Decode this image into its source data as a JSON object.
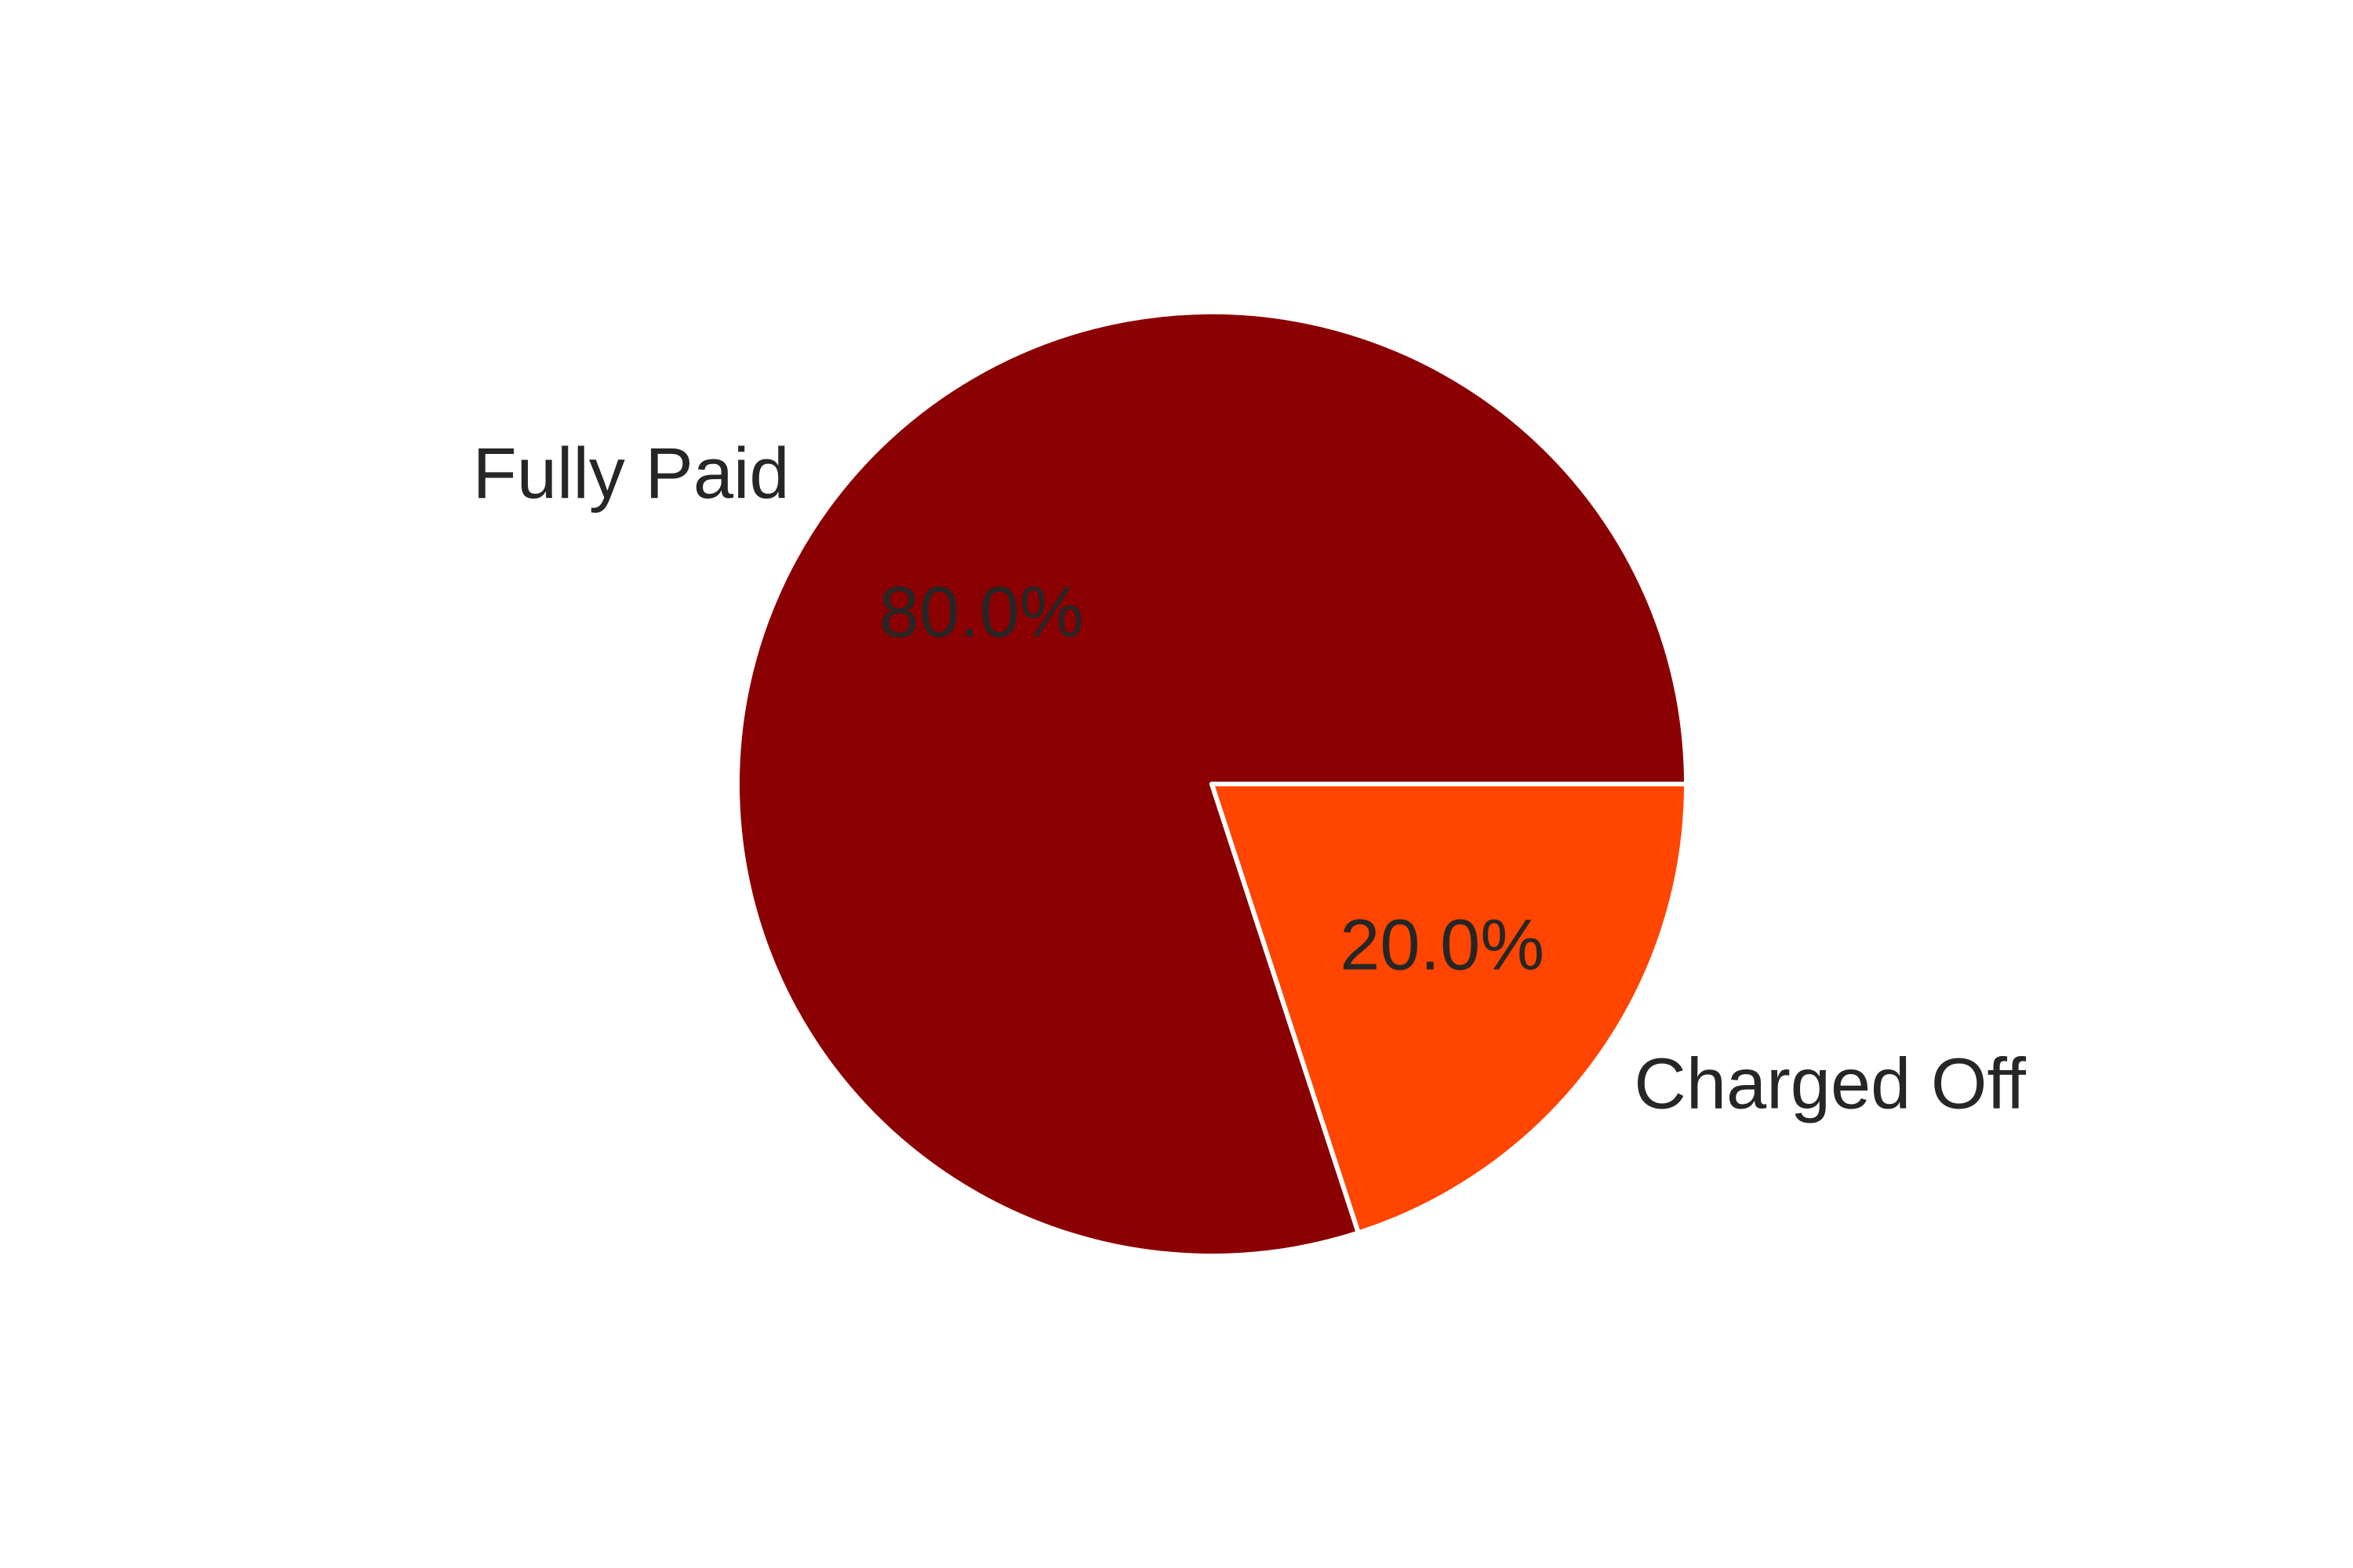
{
  "chart_data": {
    "type": "pie",
    "title": "",
    "slices": [
      {
        "label": "Fully Paid",
        "value": 80.0,
        "pct_label": "80.0%",
        "color": "#8b0000"
      },
      {
        "label": "Charged Off",
        "value": 20.0,
        "pct_label": "20.0%",
        "color": "#ff4500"
      }
    ],
    "start_angle_deg": 0,
    "direction": "counterclockwise",
    "slice_edge_color": "#ffffff",
    "text_color": "#262626"
  }
}
